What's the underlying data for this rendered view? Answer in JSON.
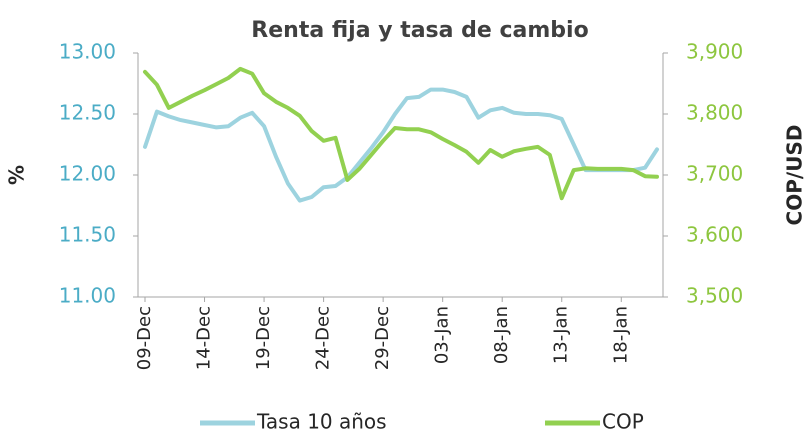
{
  "chart_data": {
    "type": "line",
    "title": "Renta fija y tasa de cambio",
    "ylabel": "%",
    "y2label": "COP/USD",
    "categories": [
      "09-Dec",
      null,
      null,
      null,
      null,
      "14-Dec",
      null,
      null,
      null,
      null,
      "19-Dec",
      null,
      null,
      null,
      null,
      "24-Dec",
      null,
      null,
      null,
      null,
      "29-Dec",
      null,
      null,
      null,
      null,
      "03-Jan",
      null,
      null,
      null,
      null,
      "08-Jan",
      null,
      null,
      null,
      null,
      "13-Jan",
      null,
      null,
      null,
      null,
      "18-Jan",
      null,
      null,
      null
    ],
    "series": [
      {
        "name": "Tasa 10 años",
        "color": "#9dd3df",
        "values": [
          12.23,
          12.52,
          12.48,
          12.45,
          12.43,
          12.41,
          12.39,
          12.4,
          12.47,
          12.51,
          12.4,
          12.15,
          11.93,
          11.79,
          11.82,
          11.9,
          11.91,
          11.98,
          12.1,
          12.22,
          12.35,
          12.5,
          12.63,
          12.64,
          12.7,
          12.7,
          12.68,
          12.64,
          12.47,
          12.53,
          12.55,
          12.51,
          12.5,
          12.5,
          12.49,
          12.46,
          12.25,
          12.04,
          12.04,
          12.04,
          12.04,
          12.04,
          12.06,
          12.21
        ]
      },
      {
        "name": "COP",
        "color": "#92d050",
        "axis": "y2",
        "values": [
          3869,
          3848,
          3810,
          3820,
          3830,
          3839,
          3849,
          3859,
          3874,
          3866,
          3834,
          3820,
          3810,
          3797,
          3772,
          3756,
          3761,
          3692,
          3710,
          3733,
          3756,
          3777,
          3775,
          3775,
          3770,
          3759,
          3749,
          3738,
          3720,
          3741,
          3730,
          3739,
          3743,
          3746,
          3733,
          3662,
          3708,
          3711,
          3710,
          3710,
          3710,
          3708,
          3698,
          3697
        ]
      }
    ],
    "ylim": [
      11,
      13
    ],
    "yticks": [
      {
        "value": 11,
        "label": "11.00"
      },
      {
        "value": 11.5,
        "label": "11.50"
      },
      {
        "value": 12,
        "label": "12.00"
      },
      {
        "value": 12.5,
        "label": "12.50"
      },
      {
        "value": 13,
        "label": "13.00"
      }
    ],
    "y2lim": [
      3500,
      3900
    ],
    "y2ticks": [
      {
        "value": 3500,
        "label": "3,500"
      },
      {
        "value": 3600,
        "label": "3,600"
      },
      {
        "value": 3700,
        "label": "3,700"
      },
      {
        "value": 3800,
        "label": "3,800"
      },
      {
        "value": 3900,
        "label": "3,900"
      }
    ],
    "grid": false,
    "legend": "bottom"
  }
}
